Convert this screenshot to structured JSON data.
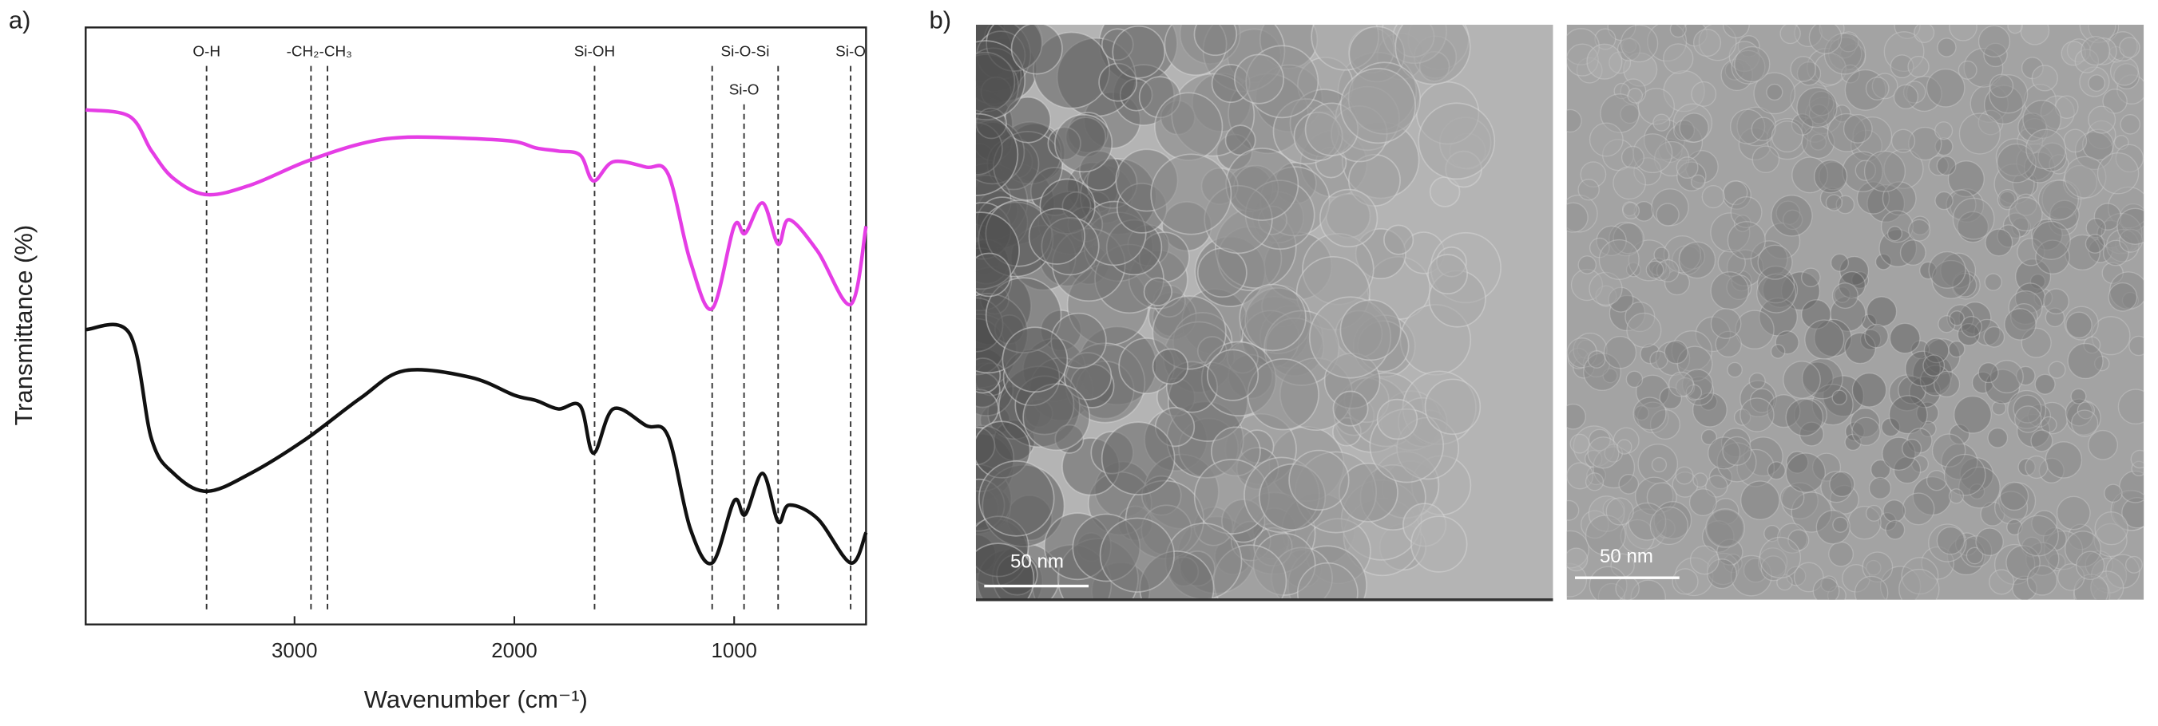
{
  "chart_data": {
    "type": "line",
    "panel_label": "a)",
    "xlabel": "Wavenumber (cm⁻¹)",
    "ylabel": "Transmittance (%)",
    "xlim": [
      3950,
      400
    ],
    "ylim": [
      0,
      100
    ],
    "xticks": [
      3000,
      2000,
      1000
    ],
    "x": [
      3950,
      3750,
      3650,
      3550,
      3400,
      3200,
      2950,
      2700,
      2500,
      2200,
      2000,
      1900,
      1800,
      1700,
      1640,
      1550,
      1400,
      1300,
      1200,
      1100,
      1000,
      950,
      870,
      800,
      750,
      620,
      470,
      400
    ],
    "series": [
      {
        "color": "#e53de5",
        "values": [
          86.2,
          85.1,
          79.3,
          74.7,
          72.0,
          73.6,
          77.5,
          80.5,
          81.6,
          81.4,
          80.9,
          79.8,
          79.3,
          78.6,
          74.3,
          77.5,
          76.6,
          75.4,
          60.9,
          52.9,
          66.7,
          65.5,
          70.6,
          63.7,
          67.8,
          62.5,
          53.6,
          66.7
        ]
      },
      {
        "color": "#111111",
        "values": [
          49.4,
          48.7,
          31.0,
          25.3,
          22.3,
          25.3,
          31.0,
          37.9,
          42.5,
          41.4,
          38.4,
          37.5,
          36.1,
          36.6,
          28.7,
          36.1,
          33.3,
          31.5,
          16.1,
          10.3,
          20.7,
          18.4,
          25.3,
          17.2,
          20.0,
          17.7,
          10.3,
          15.4
        ]
      }
    ],
    "annotations": [
      {
        "text": "O-H",
        "lines": [
          3400
        ]
      },
      {
        "text": "-CH₂-CH₃",
        "lines": [
          2925,
          2850
        ]
      },
      {
        "text": "Si-OH",
        "lines": [
          1635
        ]
      },
      {
        "text": "Si-O-Si",
        "lines": [
          1100,
          800
        ]
      },
      {
        "text": "Si-O",
        "lines": [
          955
        ]
      },
      {
        "text": "Si-O",
        "lines": [
          470
        ]
      }
    ]
  },
  "images": {
    "panel_label": "b)",
    "scale_bars": [
      "50 nm",
      "50 nm"
    ]
  }
}
